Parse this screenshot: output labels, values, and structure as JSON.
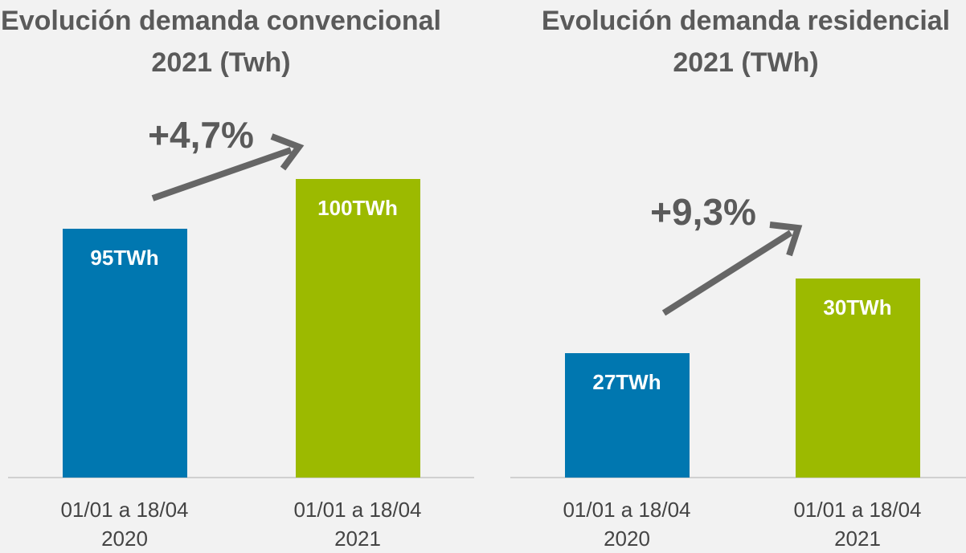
{
  "chart_data": [
    {
      "type": "bar",
      "title": [
        "Evolución demanda convencional",
        "2021 (Twh)"
      ],
      "categories": [
        [
          "01/01 a 18/04",
          "2020"
        ],
        [
          "01/01 a 18/04",
          "2021"
        ]
      ],
      "values": [
        95,
        100
      ],
      "value_labels": [
        "95TWh",
        "100TWh"
      ],
      "colors": [
        "#0077b0",
        "#9cba00"
      ],
      "annotation": "+4,7%",
      "ylim": [
        70,
        105
      ]
    },
    {
      "type": "bar",
      "title": [
        "Evolución demanda residencial",
        "2021 (TWh)"
      ],
      "categories": [
        [
          "01/01 a 18/04",
          "2020"
        ],
        [
          "01/01 a 18/04",
          "2021"
        ]
      ],
      "values": [
        27,
        30
      ],
      "value_labels": [
        "27TWh",
        "30TWh"
      ],
      "colors": [
        "#0077b0",
        "#9cba00"
      ],
      "annotation": "+9,3%",
      "ylim": [
        22,
        32
      ]
    }
  ]
}
